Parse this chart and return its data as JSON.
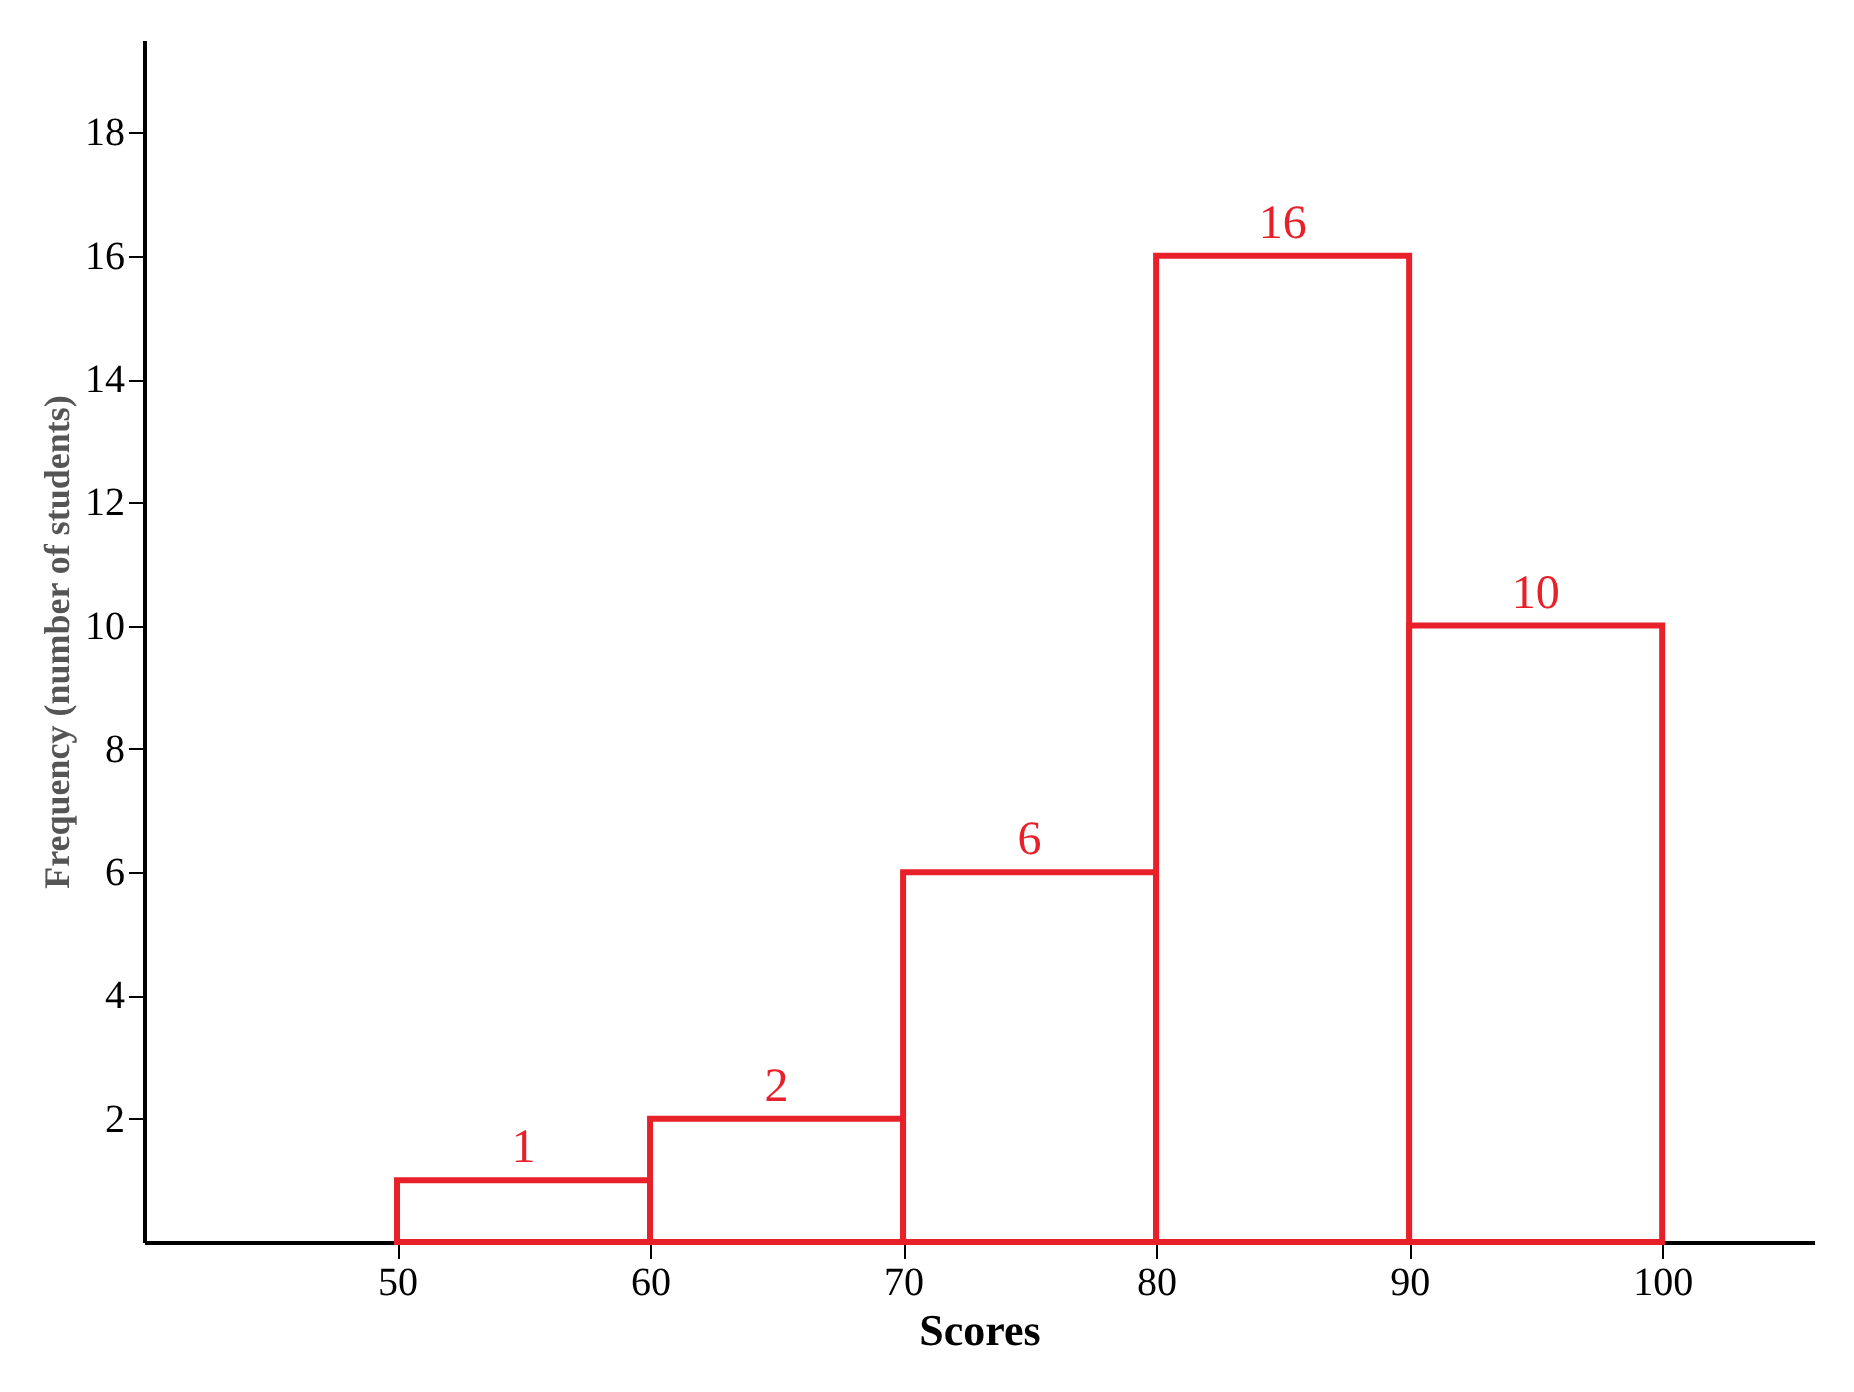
{
  "chart_data": {
    "type": "histogram",
    "xlabel": "Scores",
    "ylabel": "Frequency (number of students)",
    "bins": [
      50,
      60,
      70,
      80,
      90,
      100
    ],
    "values": [
      1,
      2,
      6,
      16,
      10
    ],
    "color": "#e8202a",
    "xlim": [
      40,
      106
    ],
    "xticks": [
      50,
      60,
      70,
      80,
      90,
      100
    ],
    "ylim": [
      0,
      19.5
    ],
    "yticks": [
      2,
      4,
      6,
      8,
      10,
      12,
      14,
      16,
      18
    ],
    "data_labels": true,
    "grid": false
  }
}
